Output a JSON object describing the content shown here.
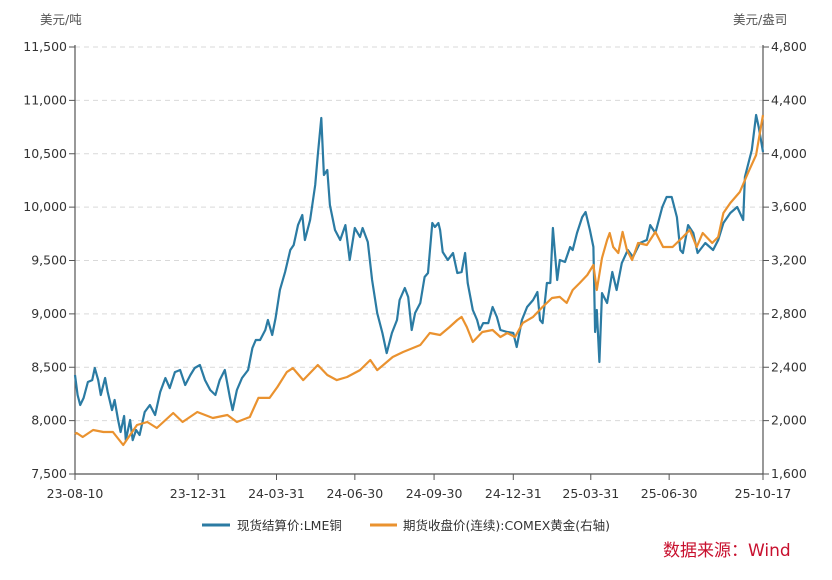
{
  "chart_data": {
    "type": "line",
    "title": "",
    "left_axis": {
      "unit": "美元/吨",
      "ylim": [
        7500,
        11500
      ],
      "ticks": [
        "7,500",
        "8,000",
        "8,500",
        "9,000",
        "9,500",
        "10,000",
        "10,500",
        "11,000",
        "11,500"
      ],
      "tick_values": [
        7500,
        8000,
        8500,
        9000,
        9500,
        10000,
        10500,
        11000,
        11500
      ]
    },
    "right_axis": {
      "unit": "美元/盎司",
      "ylim": [
        1600,
        4800
      ],
      "ticks": [
        "1,600",
        "2,000",
        "2,400",
        "2,800",
        "3,200",
        "3,600",
        "4,000",
        "4,400",
        "4,800"
      ],
      "tick_values": [
        1600,
        2000,
        2400,
        2800,
        3200,
        3600,
        4000,
        4400,
        4800
      ]
    },
    "x_range_days": [
      0,
      799
    ],
    "x_ticks": [
      {
        "label": "23-08-10",
        "day": 0
      },
      {
        "label": "23-12-31",
        "day": 143
      },
      {
        "label": "24-03-31",
        "day": 234
      },
      {
        "label": "24-06-30",
        "day": 325
      },
      {
        "label": "24-09-30",
        "day": 417
      },
      {
        "label": "24-12-31",
        "day": 509
      },
      {
        "label": "25-03-31",
        "day": 599
      },
      {
        "label": "25-06-30",
        "day": 690
      },
      {
        "label": "25-10-17",
        "day": 799
      }
    ],
    "grid": true,
    "legend_position": "bottom-center",
    "series": [
      {
        "name": "现货结算价:LME铜",
        "axis": "left",
        "color": "#2b7ba3",
        "points": [
          [
            0,
            8427
          ],
          [
            3,
            8240
          ],
          [
            6,
            8146
          ],
          [
            10,
            8212
          ],
          [
            15,
            8362
          ],
          [
            20,
            8380
          ],
          [
            23,
            8493
          ],
          [
            27,
            8380
          ],
          [
            30,
            8240
          ],
          [
            35,
            8399
          ],
          [
            38,
            8268
          ],
          [
            43,
            8099
          ],
          [
            46,
            8193
          ],
          [
            50,
            8006
          ],
          [
            53,
            7893
          ],
          [
            57,
            8043
          ],
          [
            59,
            7818
          ],
          [
            64,
            8006
          ],
          [
            67,
            7818
          ],
          [
            71,
            7912
          ],
          [
            75,
            7865
          ],
          [
            81,
            8081
          ],
          [
            87,
            8146
          ],
          [
            93,
            8053
          ],
          [
            99,
            8268
          ],
          [
            105,
            8399
          ],
          [
            110,
            8305
          ],
          [
            116,
            8455
          ],
          [
            122,
            8474
          ],
          [
            128,
            8334
          ],
          [
            134,
            8427
          ],
          [
            139,
            8493
          ],
          [
            145,
            8521
          ],
          [
            151,
            8380
          ],
          [
            157,
            8287
          ],
          [
            163,
            8240
          ],
          [
            168,
            8380
          ],
          [
            174,
            8474
          ],
          [
            180,
            8212
          ],
          [
            183,
            8099
          ],
          [
            188,
            8287
          ],
          [
            194,
            8399
          ],
          [
            201,
            8474
          ],
          [
            206,
            8680
          ],
          [
            210,
            8755
          ],
          [
            215,
            8755
          ],
          [
            221,
            8849
          ],
          [
            224,
            8943
          ],
          [
            229,
            8802
          ],
          [
            233,
            8961
          ],
          [
            238,
            9224
          ],
          [
            244,
            9392
          ],
          [
            250,
            9598
          ],
          [
            254,
            9645
          ],
          [
            259,
            9832
          ],
          [
            264,
            9926
          ],
          [
            267,
            9692
          ],
          [
            273,
            9879
          ],
          [
            279,
            10207
          ],
          [
            282,
            10488
          ],
          [
            286,
            10835
          ],
          [
            289,
            10301
          ],
          [
            293,
            10348
          ],
          [
            296,
            10020
          ],
          [
            302,
            9786
          ],
          [
            308,
            9692
          ],
          [
            314,
            9832
          ],
          [
            319,
            9505
          ],
          [
            325,
            9804
          ],
          [
            331,
            9720
          ],
          [
            334,
            9804
          ],
          [
            340,
            9673
          ],
          [
            345,
            9317
          ],
          [
            351,
            9008
          ],
          [
            357,
            8821
          ],
          [
            362,
            8633
          ],
          [
            368,
            8821
          ],
          [
            374,
            8943
          ],
          [
            377,
            9130
          ],
          [
            383,
            9242
          ],
          [
            387,
            9158
          ],
          [
            391,
            8849
          ],
          [
            395,
            9008
          ],
          [
            401,
            9102
          ],
          [
            406,
            9345
          ],
          [
            410,
            9383
          ],
          [
            415,
            9851
          ],
          [
            418,
            9814
          ],
          [
            422,
            9851
          ],
          [
            424,
            9786
          ],
          [
            427,
            9580
          ],
          [
            433,
            9505
          ],
          [
            439,
            9570
          ],
          [
            444,
            9383
          ],
          [
            449,
            9392
          ],
          [
            453,
            9570
          ],
          [
            456,
            9289
          ],
          [
            462,
            9036
          ],
          [
            467,
            8943
          ],
          [
            470,
            8849
          ],
          [
            474,
            8914
          ],
          [
            480,
            8914
          ],
          [
            485,
            9064
          ],
          [
            490,
            8971
          ],
          [
            494,
            8849
          ],
          [
            502,
            8830
          ],
          [
            509,
            8821
          ],
          [
            513,
            8690
          ],
          [
            519,
            8943
          ],
          [
            525,
            9064
          ],
          [
            532,
            9130
          ],
          [
            537,
            9205
          ],
          [
            540,
            8943
          ],
          [
            543,
            8914
          ],
          [
            548,
            9289
          ],
          [
            552,
            9289
          ],
          [
            555,
            9804
          ],
          [
            560,
            9317
          ],
          [
            563,
            9505
          ],
          [
            569,
            9486
          ],
          [
            575,
            9626
          ],
          [
            578,
            9598
          ],
          [
            583,
            9758
          ],
          [
            589,
            9907
          ],
          [
            593,
            9954
          ],
          [
            598,
            9786
          ],
          [
            602,
            9626
          ],
          [
            604,
            8830
          ],
          [
            606,
            9036
          ],
          [
            609,
            8549
          ],
          [
            612,
            9195
          ],
          [
            618,
            9102
          ],
          [
            624,
            9392
          ],
          [
            629,
            9224
          ],
          [
            635,
            9476
          ],
          [
            642,
            9598
          ],
          [
            648,
            9533
          ],
          [
            656,
            9664
          ],
          [
            664,
            9692
          ],
          [
            668,
            9832
          ],
          [
            674,
            9758
          ],
          [
            682,
            10001
          ],
          [
            687,
            10095
          ],
          [
            693,
            10095
          ],
          [
            699,
            9907
          ],
          [
            703,
            9598
          ],
          [
            706,
            9570
          ],
          [
            712,
            9832
          ],
          [
            718,
            9758
          ],
          [
            723,
            9570
          ],
          [
            732,
            9664
          ],
          [
            741,
            9598
          ],
          [
            747,
            9692
          ],
          [
            753,
            9851
          ],
          [
            761,
            9945
          ],
          [
            769,
            10001
          ],
          [
            776,
            9879
          ],
          [
            778,
            10282
          ],
          [
            786,
            10535
          ],
          [
            791,
            10863
          ],
          [
            794,
            10751
          ],
          [
            799,
            10516
          ]
        ]
      },
      {
        "name": "期货收盘价(连续):COMEX黄金(右轴)",
        "axis": "right",
        "color": "#ea922f",
        "points": [
          [
            0,
            1900
          ],
          [
            2,
            1907
          ],
          [
            9,
            1877
          ],
          [
            21,
            1930
          ],
          [
            33,
            1915
          ],
          [
            44,
            1915
          ],
          [
            56,
            1817
          ],
          [
            72,
            1967
          ],
          [
            84,
            1990
          ],
          [
            95,
            1945
          ],
          [
            114,
            2057
          ],
          [
            125,
            1990
          ],
          [
            142,
            2065
          ],
          [
            160,
            2020
          ],
          [
            177,
            2042
          ],
          [
            188,
            1990
          ],
          [
            203,
            2027
          ],
          [
            213,
            2170
          ],
          [
            226,
            2170
          ],
          [
            235,
            2252
          ],
          [
            246,
            2364
          ],
          [
            253,
            2394
          ],
          [
            265,
            2304
          ],
          [
            282,
            2417
          ],
          [
            293,
            2342
          ],
          [
            304,
            2304
          ],
          [
            316,
            2327
          ],
          [
            331,
            2379
          ],
          [
            343,
            2454
          ],
          [
            351,
            2379
          ],
          [
            369,
            2477
          ],
          [
            381,
            2514
          ],
          [
            401,
            2567
          ],
          [
            412,
            2657
          ],
          [
            424,
            2642
          ],
          [
            435,
            2702
          ],
          [
            444,
            2754
          ],
          [
            449,
            2777
          ],
          [
            455,
            2702
          ],
          [
            462,
            2589
          ],
          [
            473,
            2664
          ],
          [
            485,
            2679
          ],
          [
            494,
            2627
          ],
          [
            502,
            2657
          ],
          [
            511,
            2627
          ],
          [
            520,
            2732
          ],
          [
            532,
            2777
          ],
          [
            543,
            2852
          ],
          [
            554,
            2919
          ],
          [
            563,
            2927
          ],
          [
            571,
            2882
          ],
          [
            578,
            2979
          ],
          [
            586,
            3031
          ],
          [
            595,
            3091
          ],
          [
            602,
            3166
          ],
          [
            606,
            2979
          ],
          [
            612,
            3219
          ],
          [
            618,
            3354
          ],
          [
            621,
            3406
          ],
          [
            625,
            3301
          ],
          [
            631,
            3256
          ],
          [
            636,
            3414
          ],
          [
            641,
            3279
          ],
          [
            647,
            3204
          ],
          [
            654,
            3331
          ],
          [
            664,
            3316
          ],
          [
            674,
            3414
          ],
          [
            683,
            3301
          ],
          [
            694,
            3301
          ],
          [
            706,
            3376
          ],
          [
            714,
            3429
          ],
          [
            722,
            3301
          ],
          [
            729,
            3406
          ],
          [
            740,
            3331
          ],
          [
            747,
            3376
          ],
          [
            753,
            3556
          ],
          [
            761,
            3631
          ],
          [
            772,
            3713
          ],
          [
            782,
            3863
          ],
          [
            791,
            3991
          ],
          [
            798,
            4253
          ],
          [
            799,
            4290
          ]
        ]
      }
    ]
  },
  "source": "数据来源：Wind"
}
